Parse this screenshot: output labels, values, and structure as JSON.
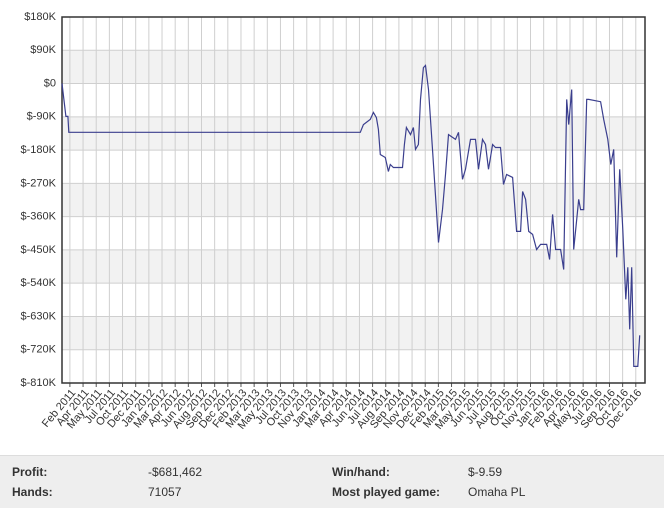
{
  "chart_data": {
    "type": "line",
    "xticks": [
      {
        "value": 0,
        "label": "Feb 2011"
      },
      {
        "value": 1,
        "label": "Apr 2011"
      },
      {
        "value": 2,
        "label": "May 2011"
      },
      {
        "value": 3,
        "label": "Jul 2011"
      },
      {
        "value": 4,
        "label": "Oct 2011"
      },
      {
        "value": 5,
        "label": "Dec 2011"
      },
      {
        "value": 6,
        "label": "Jan 2012"
      },
      {
        "value": 7,
        "label": "Mar 2012"
      },
      {
        "value": 8,
        "label": "Apr 2012"
      },
      {
        "value": 9,
        "label": "Jun 2012"
      },
      {
        "value": 10,
        "label": "Aug 2012"
      },
      {
        "value": 11,
        "label": "Sep 2012"
      },
      {
        "value": 12,
        "label": "Dec 2012"
      },
      {
        "value": 13,
        "label": "Feb 2013"
      },
      {
        "value": 14,
        "label": "Mar 2013"
      },
      {
        "value": 15,
        "label": "May 2013"
      },
      {
        "value": 16,
        "label": "Jul 2013"
      },
      {
        "value": 17,
        "label": "Oct 2013"
      },
      {
        "value": 18,
        "label": "Nov 2013"
      },
      {
        "value": 19,
        "label": "Jan 2014"
      },
      {
        "value": 20,
        "label": "Mar 2014"
      },
      {
        "value": 21,
        "label": "Apr 2014"
      },
      {
        "value": 22,
        "label": "Jun 2014"
      },
      {
        "value": 23,
        "label": "Jul 2014"
      },
      {
        "value": 24,
        "label": "Aug 2014"
      },
      {
        "value": 25,
        "label": "Sep 2014"
      },
      {
        "value": 26,
        "label": "Nov 2014"
      },
      {
        "value": 27,
        "label": "Dec 2014"
      },
      {
        "value": 28,
        "label": "Feb 2015"
      },
      {
        "value": 29,
        "label": "Mar 2015"
      },
      {
        "value": 30,
        "label": "May 2015"
      },
      {
        "value": 31,
        "label": "Jun 2015"
      },
      {
        "value": 32,
        "label": "Jul 2015"
      },
      {
        "value": 33,
        "label": "Aug 2015"
      },
      {
        "value": 34,
        "label": "Oct 2015"
      },
      {
        "value": 35,
        "label": "Nov 2015"
      },
      {
        "value": 36,
        "label": "Jan 2016"
      },
      {
        "value": 37,
        "label": "Feb 2016"
      },
      {
        "value": 38,
        "label": "Apr 2016"
      },
      {
        "value": 39,
        "label": "May 2016"
      },
      {
        "value": 40,
        "label": "Jul 2016"
      },
      {
        "value": 41,
        "label": "Sep 2016"
      },
      {
        "value": 42,
        "label": "Oct 2016"
      },
      {
        "value": 43,
        "label": "Dec 2016"
      }
    ],
    "xlim": [
      -0.6,
      43.7
    ],
    "ylim": [
      -810,
      180
    ],
    "yticks": [
      {
        "value": 180,
        "label": "$180K"
      },
      {
        "value": 90,
        "label": "$90K"
      },
      {
        "value": 0,
        "label": "$0"
      },
      {
        "value": -90,
        "label": "$-90K"
      },
      {
        "value": -180,
        "label": "$-180K"
      },
      {
        "value": -270,
        "label": "$-270K"
      },
      {
        "value": -360,
        "label": "$-360K"
      },
      {
        "value": -450,
        "label": "$-450K"
      },
      {
        "value": -540,
        "label": "$-540K"
      },
      {
        "value": -630,
        "label": "$-630K"
      },
      {
        "value": -720,
        "label": "$-720K"
      },
      {
        "value": -810,
        "label": "$-810K"
      }
    ],
    "grid": true,
    "series": [
      {
        "color": "#3b3f8e",
        "x": [
          -0.6,
          -0.3,
          -0.15,
          -0.08,
          22.07,
          22.3,
          22.83,
          23.06,
          23.29,
          23.44,
          23.59,
          23.97,
          24.2,
          24.35,
          24.58,
          25.27,
          25.42,
          25.57,
          25.88,
          26.1,
          26.26,
          26.48,
          26.64,
          26.86,
          27.02,
          27.25,
          27.55,
          27.85,
          28.01,
          28.31,
          28.54,
          28.77,
          29.3,
          29.53,
          29.83,
          30.06,
          30.44,
          30.82,
          31.05,
          31.35,
          31.58,
          31.81,
          32.12,
          32.34,
          32.72,
          32.95,
          33.18,
          33.64,
          33.94,
          34.25,
          34.4,
          34.63,
          34.86,
          35.16,
          35.46,
          35.77,
          36.23,
          36.45,
          36.68,
          36.91,
          37.29,
          37.52,
          37.75,
          37.9,
          38.13,
          38.28,
          38.51,
          38.66,
          38.81,
          39.04,
          39.27,
          39.42,
          40.33,
          40.56,
          40.87,
          41.1,
          41.32,
          41.55,
          41.78,
          42.01,
          42.24,
          42.39,
          42.54,
          42.69,
          42.85,
          43.15,
          43.3
        ],
        "values": [
          0,
          -89,
          -89,
          -132,
          -132,
          -111,
          -97,
          -78,
          -92,
          -124,
          -192,
          -200,
          -238,
          -219,
          -227,
          -227,
          -165,
          -119,
          -138,
          -119,
          -178,
          -165,
          -43,
          43,
          49,
          -16,
          -178,
          -341,
          -430,
          -341,
          -246,
          -138,
          -151,
          -132,
          -259,
          -232,
          -151,
          -151,
          -232,
          -151,
          -165,
          -232,
          -165,
          -173,
          -173,
          -273,
          -246,
          -254,
          -400,
          -400,
          -292,
          -313,
          -400,
          -408,
          -449,
          -435,
          -435,
          -476,
          -354,
          -449,
          -449,
          -503,
          -43,
          -111,
          -16,
          -449,
          -368,
          -313,
          -341,
          -341,
          -43,
          -43,
          -49,
          -97,
          -151,
          -219,
          -178,
          -470,
          -232,
          -395,
          -584,
          -497,
          -665,
          -497,
          -765,
          -765,
          -681
        ]
      }
    ]
  },
  "stats": {
    "profit_label": "Profit:",
    "profit": "-$681,462",
    "winhand_label": "Win/hand:",
    "winhand": "$-9.59",
    "hands_label": "Hands:",
    "hands": "71057",
    "game_label": "Most played game:",
    "game": "Omaha PL"
  }
}
